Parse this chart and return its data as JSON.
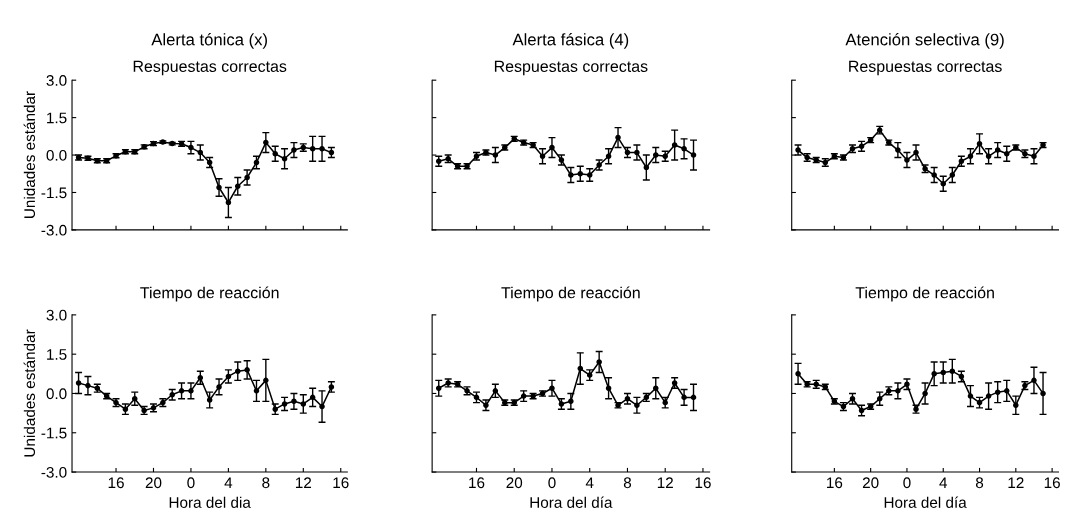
{
  "chart_data": [
    {
      "type": "line",
      "title": "Alerta tónica (x)",
      "subtitle": "Respuestas correctas",
      "ylabel": "Unidades estándar",
      "color": "#000000",
      "marker": "circle",
      "tick_labels": "y",
      "categories": [
        null,
        null,
        null,
        null,
        "16",
        null,
        null,
        null,
        "20",
        null,
        null,
        null,
        "0",
        null,
        null,
        null,
        "4",
        null,
        null,
        null,
        "8",
        null,
        null,
        null,
        "12",
        null,
        null,
        null,
        "16"
      ],
      "values": [
        -0.1,
        -0.13,
        -0.23,
        -0.23,
        -0.03,
        0.13,
        0.13,
        0.33,
        0.46,
        0.52,
        0.46,
        0.45,
        0.3,
        0.1,
        -0.3,
        -1.3,
        -1.9,
        -1.25,
        -0.9,
        -0.3,
        0.5,
        0.05,
        -0.15,
        0.2,
        0.3,
        0.25,
        0.25,
        0.1,
        null
      ],
      "errors": [
        0.1,
        0.08,
        0.08,
        0.08,
        0.08,
        0.08,
        0.08,
        0.08,
        0.08,
        0.05,
        0.05,
        0.1,
        0.25,
        0.3,
        0.2,
        0.35,
        0.6,
        0.35,
        0.3,
        0.25,
        0.4,
        0.3,
        0.4,
        0.3,
        0.15,
        0.5,
        0.5,
        0.2,
        null
      ],
      "ylim": [
        -3.0,
        3.0
      ],
      "yticks": [
        {
          "value": 3,
          "label": "3.0"
        },
        {
          "value": 1.5,
          "label": "1.5"
        },
        {
          "value": 0,
          "label": "0.0"
        },
        {
          "value": -1.5,
          "label": "-1.5"
        },
        {
          "value": -3,
          "label": "-3.0"
        }
      ]
    },
    {
      "type": "line",
      "title": "Alerta fásica (4)",
      "subtitle": "Respuestas correctas",
      "color": "#000000",
      "marker": "circle",
      "tick_labels": false,
      "categories": [
        null,
        null,
        null,
        null,
        "16",
        null,
        null,
        null,
        "20",
        null,
        null,
        null,
        "0",
        null,
        null,
        null,
        "4",
        null,
        null,
        null,
        "8",
        null,
        null,
        null,
        "12",
        null,
        null,
        null,
        "16"
      ],
      "values": [
        -0.25,
        -0.15,
        -0.45,
        -0.45,
        -0.05,
        0.1,
        0.0,
        0.3,
        0.65,
        0.5,
        0.4,
        -0.05,
        0.3,
        -0.2,
        -0.8,
        -0.75,
        -0.8,
        -0.4,
        -0.05,
        0.7,
        0.1,
        0.1,
        -0.5,
        0.0,
        -0.05,
        0.4,
        0.25,
        0.0,
        null
      ],
      "errors": [
        0.2,
        0.15,
        0.1,
        0.1,
        0.15,
        0.1,
        0.3,
        0.1,
        0.1,
        0.1,
        0.1,
        0.3,
        0.4,
        0.2,
        0.3,
        0.3,
        0.25,
        0.2,
        0.3,
        0.4,
        0.2,
        0.3,
        0.5,
        0.3,
        0.2,
        0.6,
        0.4,
        0.6,
        null
      ],
      "ylim": [
        -3.0,
        3.0
      ],
      "yticks": [
        {
          "value": 3,
          "label": null
        },
        {
          "value": 1.5,
          "label": null
        },
        {
          "value": 0,
          "label": null
        },
        {
          "value": -1.5,
          "label": null
        },
        {
          "value": -3,
          "label": null
        }
      ]
    },
    {
      "type": "line",
      "title": "Atención selectiva (9)",
      "subtitle": "Respuestas correctas",
      "color": "#000000",
      "marker": "circle",
      "tick_labels": false,
      "categories": [
        null,
        null,
        null,
        null,
        "16",
        null,
        null,
        null,
        "20",
        null,
        null,
        null,
        "0",
        null,
        null,
        null,
        "4",
        null,
        null,
        null,
        "8",
        null,
        null,
        null,
        "12",
        null,
        null,
        null,
        "16"
      ],
      "values": [
        0.2,
        -0.1,
        -0.2,
        -0.3,
        -0.05,
        -0.1,
        0.25,
        0.35,
        0.6,
        1.0,
        0.5,
        0.2,
        -0.2,
        0.1,
        -0.55,
        -0.8,
        -1.15,
        -0.8,
        -0.25,
        -0.05,
        0.45,
        -0.05,
        0.2,
        0.05,
        0.3,
        0.05,
        -0.05,
        0.4,
        null
      ],
      "errors": [
        0.2,
        0.15,
        0.1,
        0.15,
        0.1,
        0.1,
        0.15,
        0.2,
        0.1,
        0.15,
        0.1,
        0.3,
        0.3,
        0.3,
        0.15,
        0.3,
        0.3,
        0.3,
        0.2,
        0.3,
        0.4,
        0.3,
        0.3,
        0.3,
        0.1,
        0.15,
        0.3,
        0.1,
        null
      ],
      "ylim": [
        -3.0,
        3.0
      ],
      "yticks": [
        {
          "value": 3,
          "label": null
        },
        {
          "value": 1.5,
          "label": null
        },
        {
          "value": 0,
          "label": null
        },
        {
          "value": -1.5,
          "label": null
        },
        {
          "value": -3,
          "label": null
        }
      ]
    },
    {
      "type": "line",
      "title": "Tiempo de reacción",
      "ylabel": "Unidades estándar",
      "xlabel": "Hora del dia",
      "color": "#000000",
      "marker": "circle",
      "categories": [
        null,
        null,
        null,
        null,
        "16",
        null,
        null,
        null,
        "20",
        null,
        null,
        null,
        "0",
        null,
        null,
        null,
        "4",
        null,
        null,
        null,
        "8",
        null,
        null,
        null,
        "12",
        null,
        null,
        null,
        "16"
      ],
      "values": [
        0.4,
        0.3,
        0.2,
        -0.1,
        -0.35,
        -0.6,
        -0.2,
        -0.65,
        -0.55,
        -0.35,
        -0.05,
        0.1,
        0.1,
        0.6,
        -0.25,
        0.25,
        0.65,
        0.85,
        0.9,
        0.1,
        0.5,
        -0.6,
        -0.4,
        -0.3,
        -0.4,
        -0.15,
        -0.5,
        0.25,
        null
      ],
      "errors": [
        0.4,
        0.35,
        0.15,
        0.1,
        0.15,
        0.2,
        0.25,
        0.15,
        0.15,
        0.15,
        0.2,
        0.3,
        0.3,
        0.25,
        0.3,
        0.3,
        0.25,
        0.35,
        0.35,
        0.4,
        0.8,
        0.2,
        0.25,
        0.3,
        0.35,
        0.35,
        0.6,
        0.2,
        null
      ],
      "ylim": [
        -3.0,
        3.0
      ],
      "yticks": [
        {
          "value": 3,
          "label": "3.0"
        },
        {
          "value": 1.5,
          "label": "1.5"
        },
        {
          "value": 0,
          "label": "0.0"
        },
        {
          "value": -1.5,
          "label": "-1.5"
        },
        {
          "value": -3,
          "label": "-3.0"
        }
      ]
    },
    {
      "type": "line",
      "title": "Tiempo de reacción",
      "xlabel": "Hora del día",
      "color": "#000000",
      "marker": "circle",
      "tick_labels": "x",
      "categories": [
        null,
        null,
        null,
        null,
        "16",
        null,
        null,
        null,
        "20",
        null,
        null,
        null,
        "0",
        null,
        null,
        null,
        "4",
        null,
        null,
        null,
        "8",
        null,
        null,
        null,
        "12",
        null,
        null,
        null,
        "16"
      ],
      "values": [
        0.2,
        0.4,
        0.35,
        0.1,
        -0.15,
        -0.45,
        0.1,
        -0.35,
        -0.35,
        -0.1,
        -0.1,
        0.0,
        0.2,
        -0.4,
        -0.3,
        0.95,
        0.7,
        1.2,
        0.2,
        -0.45,
        -0.2,
        -0.45,
        -0.15,
        0.2,
        -0.35,
        0.4,
        -0.15,
        -0.15,
        null
      ],
      "errors": [
        0.3,
        0.15,
        0.1,
        0.15,
        0.2,
        0.2,
        0.25,
        0.1,
        0.1,
        0.2,
        0.1,
        0.1,
        0.3,
        0.2,
        0.3,
        0.6,
        0.2,
        0.4,
        0.4,
        0.1,
        0.2,
        0.3,
        0.15,
        0.4,
        0.2,
        0.2,
        0.3,
        0.5,
        null
      ],
      "ylim": [
        -3.0,
        3.0
      ],
      "yticks": [
        {
          "value": 3,
          "label": null
        },
        {
          "value": 1.5,
          "label": null
        },
        {
          "value": 0,
          "label": null
        },
        {
          "value": -1.5,
          "label": null
        },
        {
          "value": -3,
          "label": null
        }
      ]
    },
    {
      "type": "line",
      "title": "Tiempo de reacción",
      "xlabel": "Hora del día",
      "color": "#000000",
      "marker": "circle",
      "tick_labels": "x",
      "categories": [
        null,
        null,
        null,
        null,
        "16",
        null,
        null,
        null,
        "20",
        null,
        null,
        null,
        "0",
        null,
        null,
        null,
        "4",
        null,
        null,
        null,
        "8",
        null,
        null,
        null,
        "12",
        null,
        null,
        null,
        "16"
      ],
      "values": [
        0.75,
        0.35,
        0.35,
        0.25,
        -0.3,
        -0.5,
        -0.2,
        -0.65,
        -0.5,
        -0.2,
        0.1,
        0.1,
        0.35,
        -0.6,
        0.0,
        0.75,
        0.8,
        0.85,
        0.65,
        -0.1,
        -0.35,
        -0.1,
        0.05,
        0.1,
        -0.45,
        0.3,
        0.5,
        0.0,
        null
      ],
      "errors": [
        0.4,
        0.1,
        0.15,
        0.1,
        0.1,
        0.15,
        0.2,
        0.2,
        0.1,
        0.25,
        0.15,
        0.3,
        0.2,
        0.15,
        0.4,
        0.45,
        0.4,
        0.45,
        0.2,
        0.4,
        0.2,
        0.5,
        0.4,
        0.4,
        0.35,
        0.15,
        0.5,
        0.8,
        null
      ],
      "ylim": [
        -3.0,
        3.0
      ],
      "yticks": [
        {
          "value": 3,
          "label": null
        },
        {
          "value": 1.5,
          "label": null
        },
        {
          "value": 0,
          "label": null
        },
        {
          "value": -1.5,
          "label": null
        },
        {
          "value": -3,
          "label": null
        }
      ]
    }
  ]
}
